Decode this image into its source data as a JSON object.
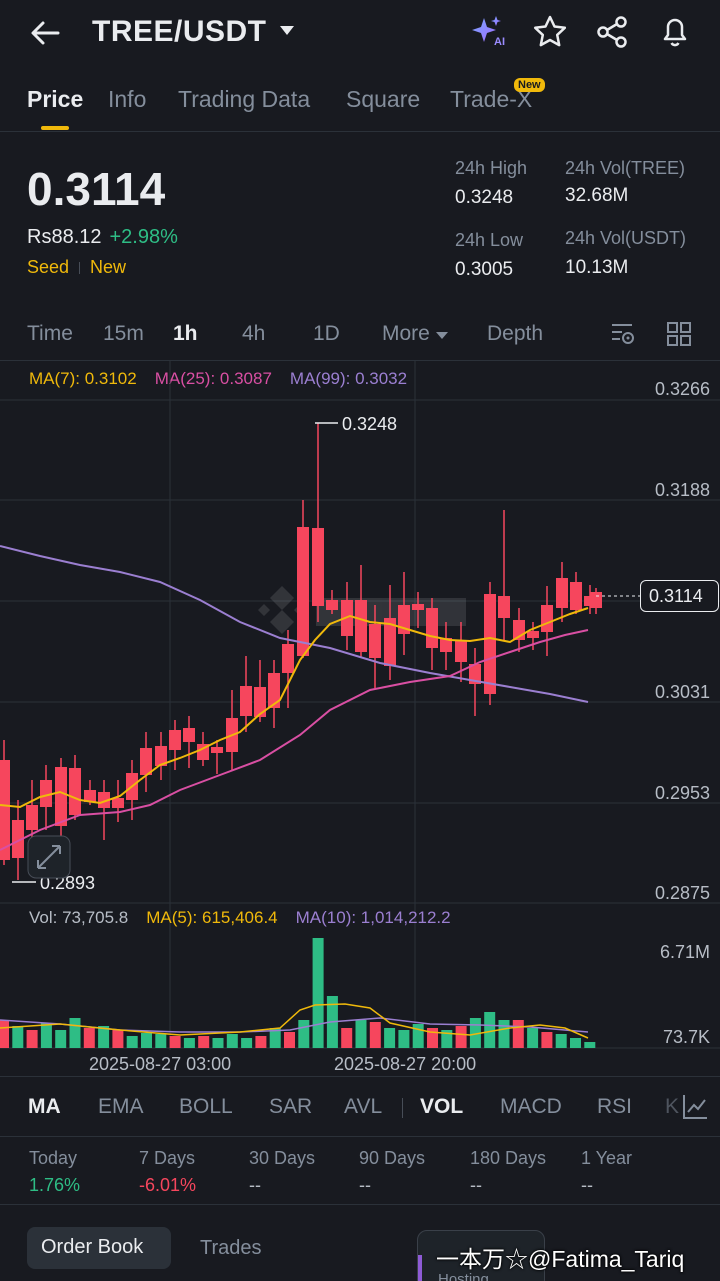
{
  "header": {
    "pair": "TREE/USDT",
    "ai_badge": "AI"
  },
  "tabs": [
    {
      "label": "Price",
      "active": true
    },
    {
      "label": "Info"
    },
    {
      "label": "Trading Data"
    },
    {
      "label": "Square"
    },
    {
      "label": "Trade-X",
      "badge": "New"
    }
  ],
  "price": {
    "last": "0.3114",
    "fiat": "Rs88.12",
    "change": "+2.98%",
    "tag1": "Seed",
    "tag2": "New"
  },
  "stats": {
    "high_label": "24h High",
    "high": "0.3248",
    "low_label": "24h Low",
    "low": "0.3005",
    "vol_base_label": "24h Vol(TREE)",
    "vol_base": "32.68M",
    "vol_quote_label": "24h Vol(USDT)",
    "vol_quote": "10.13M"
  },
  "intervals": {
    "time": "Time",
    "m15": "15m",
    "h1": "1h",
    "h4": "4h",
    "d1": "1D",
    "more": "More",
    "depth": "Depth",
    "active": "1h"
  },
  "ma_legend": {
    "ma7": "MA(7): 0.3102",
    "ma25": "MA(25): 0.3087",
    "ma99": "MA(99): 0.3032"
  },
  "y_axis": [
    "0.3266",
    "0.3188",
    "0.3114",
    "0.3031",
    "0.2953",
    "0.2875"
  ],
  "annotations": {
    "high": "0.3248",
    "low": "0.2893"
  },
  "vol_legend": {
    "vol": "Vol: 73,705.8",
    "ma5": "MA(5): 615,406.4",
    "ma10": "MA(10): 1,014,212.2"
  },
  "vol_axis": {
    "top": "6.71M",
    "bottom": "73.7K"
  },
  "x_axis": [
    "2025-08-27 03:00",
    "2025-08-27 20:00"
  ],
  "indicators": [
    "MA",
    "EMA",
    "BOLL",
    "SAR",
    "AVL",
    "VOL",
    "MACD",
    "RSI",
    "K"
  ],
  "performance": [
    {
      "label": "Today",
      "value": "1.76%",
      "color": "#2ebd85"
    },
    {
      "label": "7 Days",
      "value": "-6.01%",
      "color": "#f6465d"
    },
    {
      "label": "30 Days",
      "value": "--"
    },
    {
      "label": "90 Days",
      "value": "--"
    },
    {
      "label": "180 Days",
      "value": "--"
    },
    {
      "label": "1 Year",
      "value": "--"
    }
  ],
  "bottom_tabs": {
    "order_book": "Order Book",
    "trades": "Trades"
  },
  "watermark": "一本万☆@Fatima_Tariq",
  "hosting": "Hosting",
  "colors": {
    "up": "#2ebd85",
    "down": "#f6465d",
    "accent": "#f0b90b",
    "ma25": "#d94fa3",
    "ma99": "#9b7fd1"
  }
}
